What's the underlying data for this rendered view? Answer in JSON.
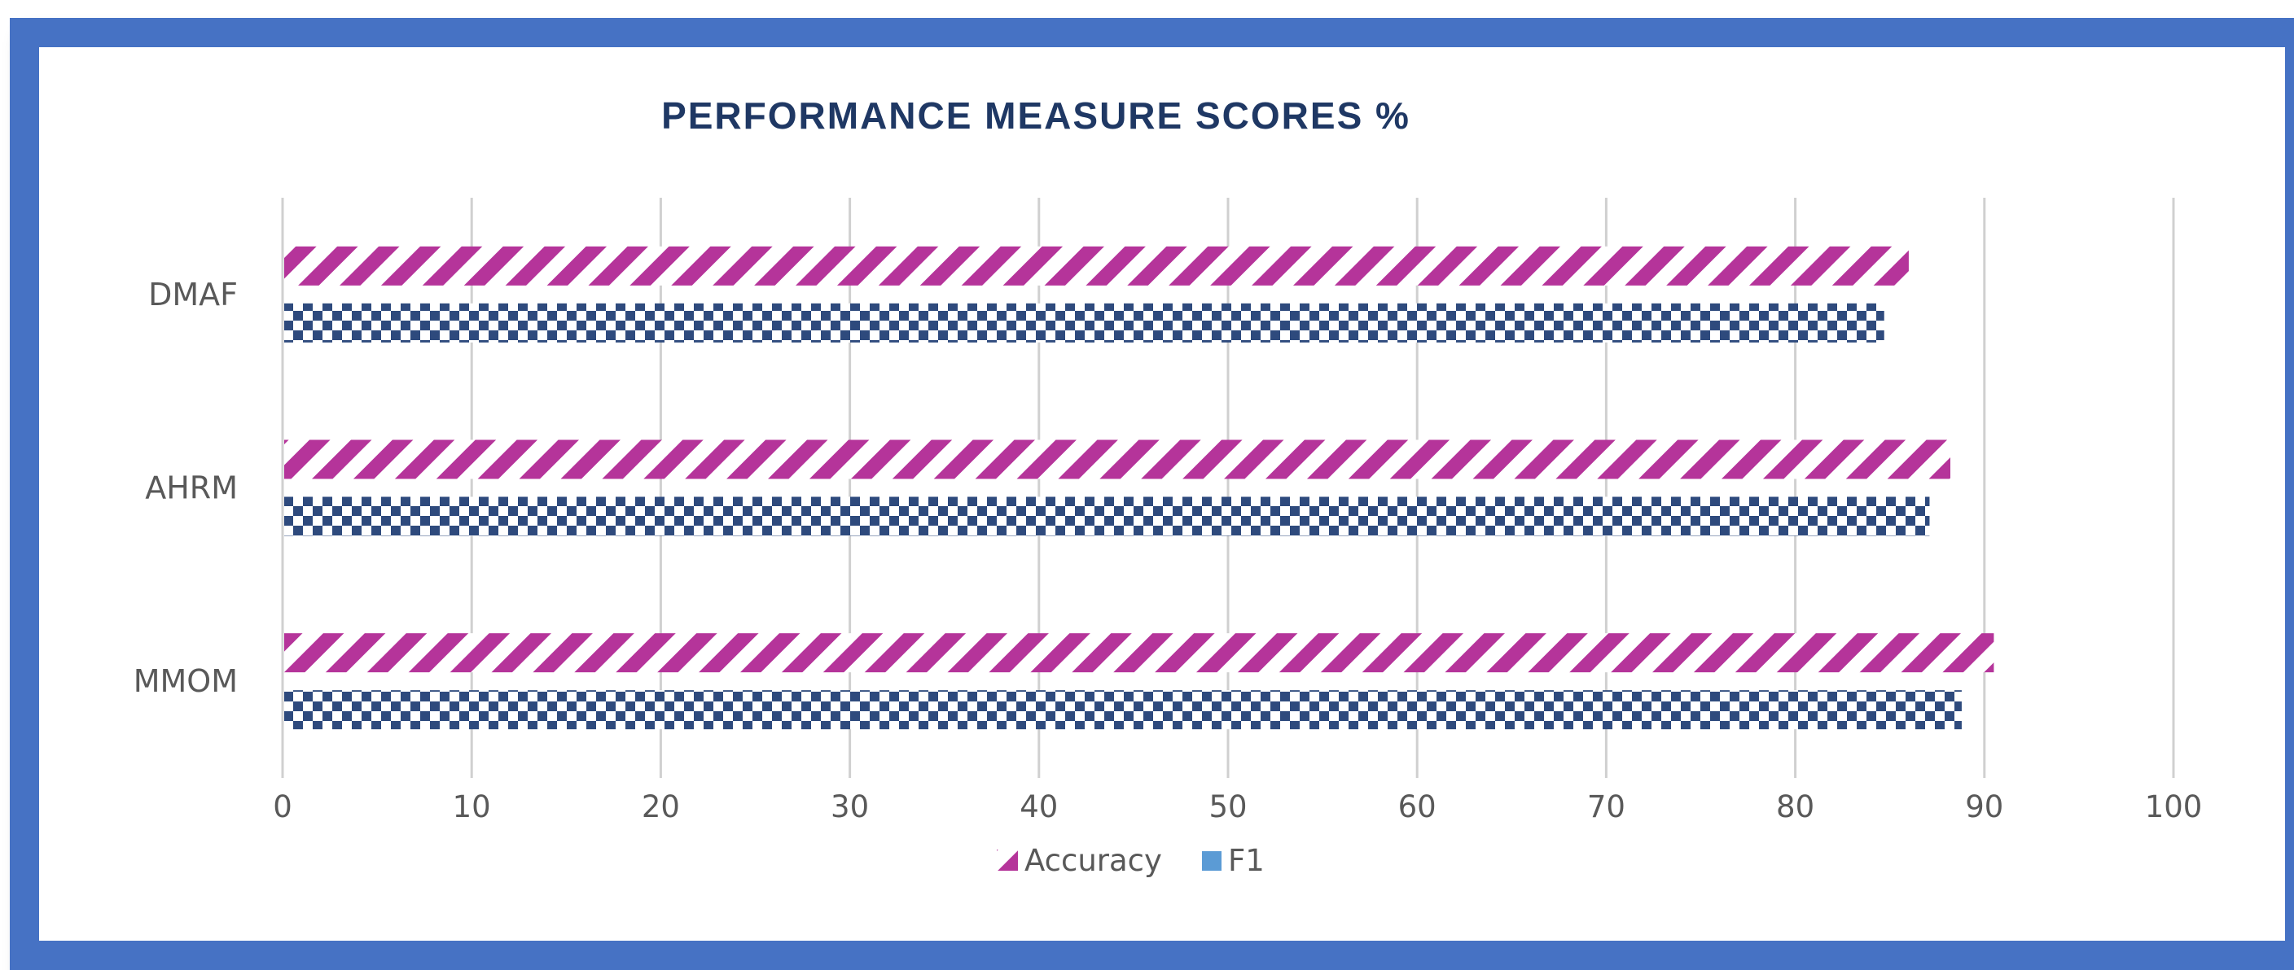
{
  "chart_data": {
    "type": "bar",
    "orientation": "horizontal",
    "title": "PERFORMANCE MEASURE SCORES %",
    "xlabel": "",
    "ylabel": "",
    "categories": [
      "DMAF",
      "AHRM",
      "MMOM"
    ],
    "series": [
      {
        "name": "Accuracy",
        "values": [
          86,
          88.2,
          90.5
        ],
        "color": "#b5349a",
        "pattern": "diagonal-stripes"
      },
      {
        "name": "F1",
        "values": [
          84.7,
          87.1,
          88.8
        ],
        "color": "#2e4a7d",
        "pattern": "checkerboard"
      }
    ],
    "xlim": [
      0,
      100
    ],
    "xticks": [
      "0",
      "10",
      "20",
      "30",
      "40",
      "50",
      "60",
      "70",
      "80",
      "90",
      "100"
    ],
    "grid": "vertical",
    "legend_position": "bottom"
  }
}
